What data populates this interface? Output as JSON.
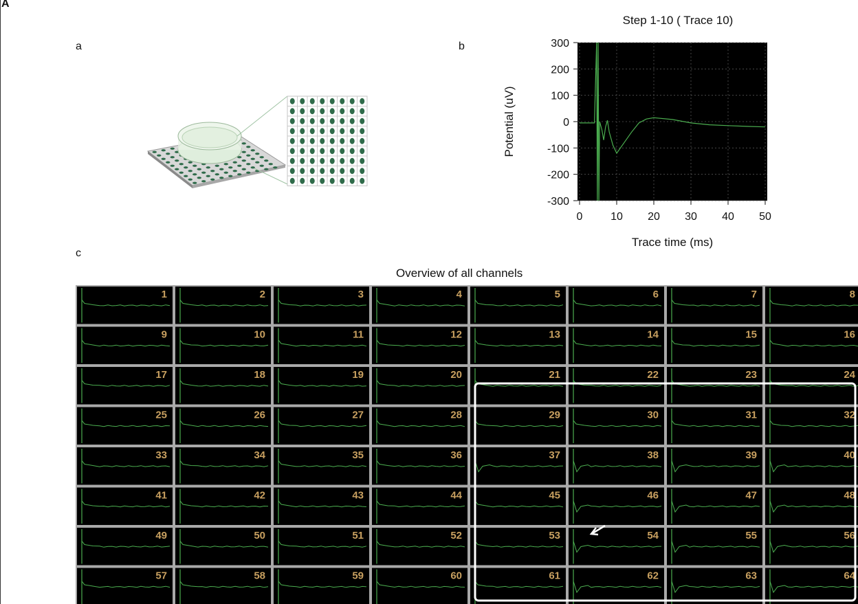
{
  "figure": {
    "label": "A",
    "panels": {
      "a": "a",
      "b": "b",
      "c": "c"
    }
  },
  "chart_data": [
    {
      "type": "line",
      "title": "Step 1-10 ( Trace 10)",
      "xlabel": "Trace time (ms)",
      "ylabel": "Potential (uV)",
      "xlim": [
        0,
        50
      ],
      "ylim": [
        -300,
        300
      ],
      "xticks": [
        "0",
        "10",
        "20",
        "30",
        "40",
        "50"
      ],
      "yticks": [
        "300",
        "200",
        "100",
        "0",
        "-100",
        "-200",
        "-300"
      ],
      "grid": true,
      "background": "#000000",
      "line_color": "#4caf50",
      "series": [
        {
          "x": [
            0,
            2,
            4,
            4.6,
            4.8,
            5.0,
            5.2,
            5.4,
            6,
            6.5,
            7,
            7.5,
            8,
            9,
            10,
            11,
            12,
            14,
            16,
            18,
            20,
            25,
            30,
            35,
            40,
            45,
            50
          ],
          "y": [
            -5,
            -5,
            -5,
            300,
            -300,
            300,
            -300,
            0,
            -30,
            -70,
            -20,
            5,
            -40,
            -90,
            -120,
            -100,
            -80,
            -40,
            -5,
            10,
            15,
            8,
            -5,
            -12,
            -15,
            -18,
            -20
          ]
        }
      ]
    },
    {
      "type": "line",
      "title": "Overview of all channels",
      "channels": [
        "1",
        "2",
        "3",
        "4",
        "5",
        "6",
        "7",
        "8",
        "9",
        "10",
        "11",
        "12",
        "13",
        "14",
        "15",
        "16",
        "17",
        "18",
        "19",
        "20",
        "21",
        "22",
        "23",
        "24",
        "25",
        "26",
        "27",
        "28",
        "29",
        "30",
        "31",
        "32",
        "33",
        "34",
        "35",
        "36",
        "37",
        "38",
        "39",
        "40",
        "41",
        "42",
        "43",
        "44",
        "45",
        "46",
        "47",
        "48",
        "49",
        "50",
        "51",
        "52",
        "53",
        "54",
        "55",
        "56",
        "57",
        "58",
        "59",
        "60",
        "61",
        "62",
        "63",
        "64"
      ],
      "highlighted_channels": [
        "21",
        "22",
        "23",
        "24",
        "29",
        "30",
        "31",
        "32",
        "37",
        "38",
        "39",
        "40",
        "45",
        "46",
        "47",
        "48",
        "53",
        "54",
        "55",
        "56",
        "61",
        "62",
        "63",
        "64"
      ],
      "response_channels": [
        "37",
        "38",
        "39",
        "40",
        "46",
        "47",
        "48",
        "54",
        "55",
        "56",
        "62",
        "63",
        "64"
      ],
      "background": "#000000",
      "line_color": "#4caf50",
      "label_color": "#c8a060"
    }
  ]
}
